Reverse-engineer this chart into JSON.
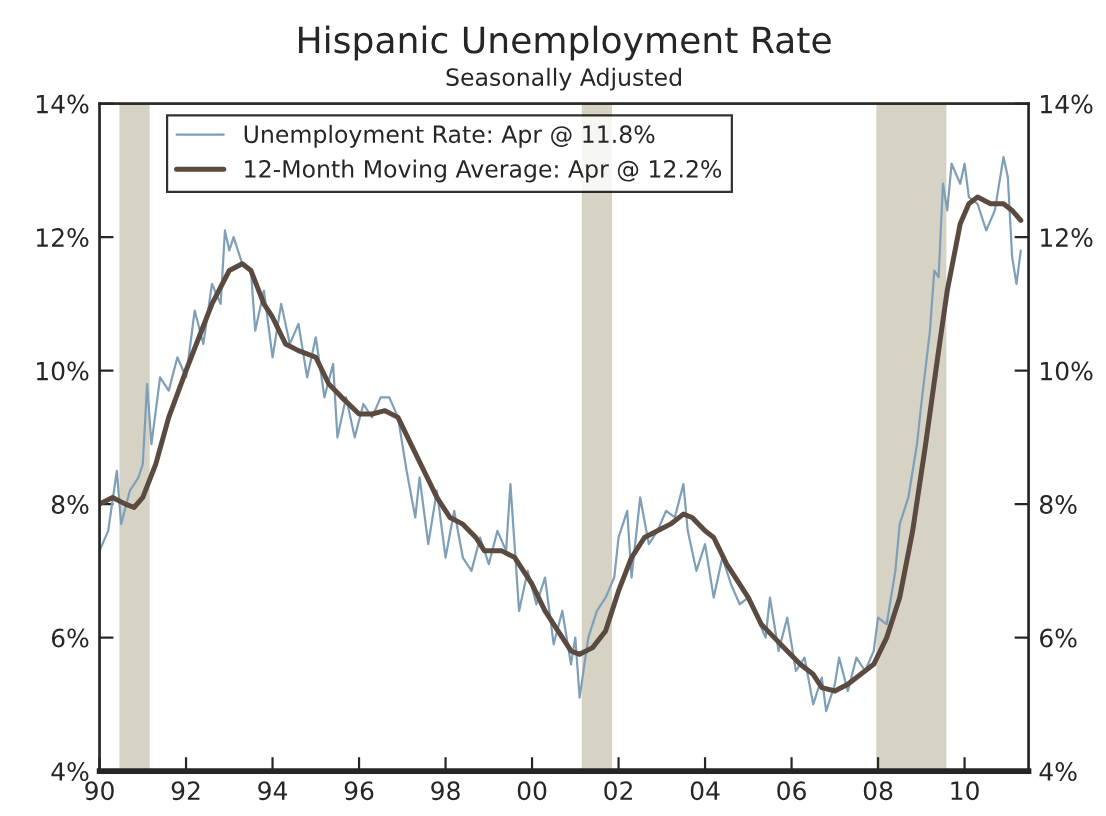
{
  "chart_data": {
    "type": "line",
    "title": "Hispanic Unemployment Rate",
    "subtitle": "Seasonally Adjusted",
    "xlim": [
      1990,
      2011.48
    ],
    "xticks": [
      {
        "value": 1990,
        "label": "90"
      },
      {
        "value": 1992,
        "label": "92"
      },
      {
        "value": 1994,
        "label": "94"
      },
      {
        "value": 1996,
        "label": "96"
      },
      {
        "value": 1998,
        "label": "98"
      },
      {
        "value": 2000,
        "label": "00"
      },
      {
        "value": 2002,
        "label": "02"
      },
      {
        "value": 2004,
        "label": "04"
      },
      {
        "value": 2006,
        "label": "06"
      },
      {
        "value": 2008,
        "label": "08"
      },
      {
        "value": 2010,
        "label": "10"
      }
    ],
    "ylim": [
      4,
      14
    ],
    "yticks": [
      {
        "value": 4,
        "label": "4%"
      },
      {
        "value": 6,
        "label": "6%"
      },
      {
        "value": 8,
        "label": "8%"
      },
      {
        "value": 10,
        "label": "10%"
      },
      {
        "value": 12,
        "label": "12%"
      },
      {
        "value": 14,
        "label": "14%"
      }
    ],
    "y2lim": [
      4,
      14
    ],
    "y2ticks": [
      {
        "value": 4,
        "label": "4%"
      },
      {
        "value": 6,
        "label": "6%"
      },
      {
        "value": 8,
        "label": "8%"
      },
      {
        "value": 10,
        "label": "10%"
      },
      {
        "value": 12,
        "label": "12%"
      },
      {
        "value": 14,
        "label": "14%"
      }
    ],
    "grid": false,
    "legend": "top left",
    "bands": [
      {
        "axis": "x",
        "from": 1990.46,
        "to": 1991.16,
        "color": "#d6d2c4"
      },
      {
        "axis": "x",
        "from": 2001.15,
        "to": 2001.85,
        "color": "#d6d2c4"
      },
      {
        "axis": "x",
        "from": 2007.96,
        "to": 2009.58,
        "color": "#d6d2c4"
      }
    ],
    "series": [
      {
        "name": "Unemployment Rate: Apr @ 11.8%",
        "color": "#7f9fb8",
        "x": [
          1990.0,
          1990.2,
          1990.4,
          1990.5,
          1990.7,
          1990.9,
          1991.0,
          1991.1,
          1991.2,
          1991.4,
          1991.6,
          1991.8,
          1992.0,
          1992.2,
          1992.4,
          1992.6,
          1992.8,
          1992.9,
          1993.0,
          1993.1,
          1993.3,
          1993.5,
          1993.6,
          1993.8,
          1994.0,
          1994.2,
          1994.4,
          1994.6,
          1994.8,
          1995.0,
          1995.2,
          1995.4,
          1995.5,
          1995.7,
          1995.9,
          1996.1,
          1996.3,
          1996.5,
          1996.7,
          1996.9,
          1997.1,
          1997.3,
          1997.4,
          1997.6,
          1997.8,
          1998.0,
          1998.2,
          1998.4,
          1998.6,
          1998.8,
          1999.0,
          1999.2,
          1999.4,
          1999.5,
          1999.7,
          1999.9,
          2000.1,
          2000.3,
          2000.5,
          2000.7,
          2000.9,
          2001.0,
          2001.1,
          2001.3,
          2001.5,
          2001.7,
          2001.9,
          2002.0,
          2002.2,
          2002.3,
          2002.5,
          2002.7,
          2002.9,
          2003.1,
          2003.3,
          2003.5,
          2003.6,
          2003.8,
          2004.0,
          2004.2,
          2004.4,
          2004.6,
          2004.8,
          2005.0,
          2005.2,
          2005.4,
          2005.5,
          2005.7,
          2005.9,
          2006.1,
          2006.3,
          2006.5,
          2006.7,
          2006.8,
          2007.0,
          2007.1,
          2007.3,
          2007.5,
          2007.7,
          2007.9,
          2008.0,
          2008.2,
          2008.4,
          2008.5,
          2008.7,
          2008.9,
          2009.0,
          2009.2,
          2009.3,
          2009.4,
          2009.5,
          2009.6,
          2009.7,
          2009.9,
          2010.0,
          2010.1,
          2010.3,
          2010.5,
          2010.7,
          2010.9,
          2011.0,
          2011.1,
          2011.2,
          2011.3
        ],
        "values": [
          7.3,
          7.6,
          8.5,
          7.7,
          8.2,
          8.4,
          8.6,
          9.8,
          8.9,
          9.9,
          9.7,
          10.2,
          9.9,
          10.9,
          10.4,
          11.3,
          11.0,
          12.1,
          11.8,
          12.0,
          11.6,
          11.5,
          10.6,
          11.2,
          10.2,
          11.0,
          10.4,
          10.7,
          9.9,
          10.5,
          9.6,
          10.1,
          9.0,
          9.6,
          9.0,
          9.5,
          9.3,
          9.6,
          9.6,
          9.3,
          8.5,
          7.8,
          8.4,
          7.4,
          8.2,
          7.2,
          7.9,
          7.2,
          7.0,
          7.5,
          7.1,
          7.6,
          7.3,
          8.3,
          6.4,
          7.0,
          6.5,
          6.9,
          5.9,
          6.4,
          5.6,
          6.0,
          5.1,
          6.0,
          6.4,
          6.6,
          6.9,
          7.5,
          7.9,
          6.9,
          8.1,
          7.4,
          7.6,
          7.9,
          7.8,
          8.3,
          7.6,
          7.0,
          7.4,
          6.6,
          7.2,
          6.8,
          6.5,
          6.6,
          6.3,
          6.0,
          6.6,
          5.8,
          6.3,
          5.5,
          5.7,
          5.0,
          5.4,
          4.9,
          5.3,
          5.7,
          5.2,
          5.7,
          5.5,
          5.8,
          6.3,
          6.2,
          7.0,
          7.7,
          8.1,
          8.9,
          9.5,
          10.6,
          11.5,
          11.4,
          12.8,
          12.4,
          13.1,
          12.8,
          13.1,
          12.6,
          12.5,
          12.1,
          12.4,
          13.2,
          12.9,
          11.7,
          11.3,
          11.8
        ]
      },
      {
        "name": "12-Month Moving Average: Apr @ 12.2%",
        "color": "#5a4a3f",
        "x": [
          1990.0,
          1990.3,
          1990.6,
          1990.8,
          1991.0,
          1991.3,
          1991.6,
          1992.0,
          1992.3,
          1992.6,
          1993.0,
          1993.3,
          1993.5,
          1993.8,
          1994.0,
          1994.3,
          1994.6,
          1995.0,
          1995.3,
          1995.6,
          1996.0,
          1996.3,
          1996.6,
          1996.9,
          1997.2,
          1997.5,
          1997.8,
          1998.1,
          1998.4,
          1998.7,
          1998.9,
          1999.3,
          1999.6,
          2000.0,
          2000.3,
          2000.6,
          2000.9,
          2001.1,
          2001.4,
          2001.7,
          2002.0,
          2002.3,
          2002.6,
          2002.9,
          2003.2,
          2003.5,
          2003.7,
          2004.0,
          2004.2,
          2004.5,
          2004.8,
          2005.0,
          2005.3,
          2005.6,
          2005.9,
          2006.2,
          2006.5,
          2006.7,
          2007.0,
          2007.3,
          2007.6,
          2007.9,
          2008.2,
          2008.5,
          2008.8,
          2009.1,
          2009.4,
          2009.6,
          2009.9,
          2010.1,
          2010.3,
          2010.6,
          2010.9,
          2011.1,
          2011.3
        ],
        "values": [
          8.0,
          8.1,
          8.0,
          7.95,
          8.1,
          8.6,
          9.3,
          10.0,
          10.5,
          11.0,
          11.5,
          11.6,
          11.5,
          11.0,
          10.8,
          10.4,
          10.3,
          10.2,
          9.8,
          9.6,
          9.35,
          9.35,
          9.4,
          9.3,
          8.9,
          8.5,
          8.1,
          7.8,
          7.7,
          7.5,
          7.3,
          7.3,
          7.2,
          6.8,
          6.4,
          6.1,
          5.8,
          5.75,
          5.85,
          6.1,
          6.7,
          7.2,
          7.5,
          7.6,
          7.7,
          7.85,
          7.8,
          7.6,
          7.5,
          7.1,
          6.8,
          6.6,
          6.2,
          6.0,
          5.8,
          5.6,
          5.45,
          5.25,
          5.2,
          5.3,
          5.45,
          5.6,
          6.0,
          6.6,
          7.6,
          8.9,
          10.3,
          11.2,
          12.2,
          12.5,
          12.6,
          12.5,
          12.5,
          12.4,
          12.25
        ]
      }
    ]
  }
}
